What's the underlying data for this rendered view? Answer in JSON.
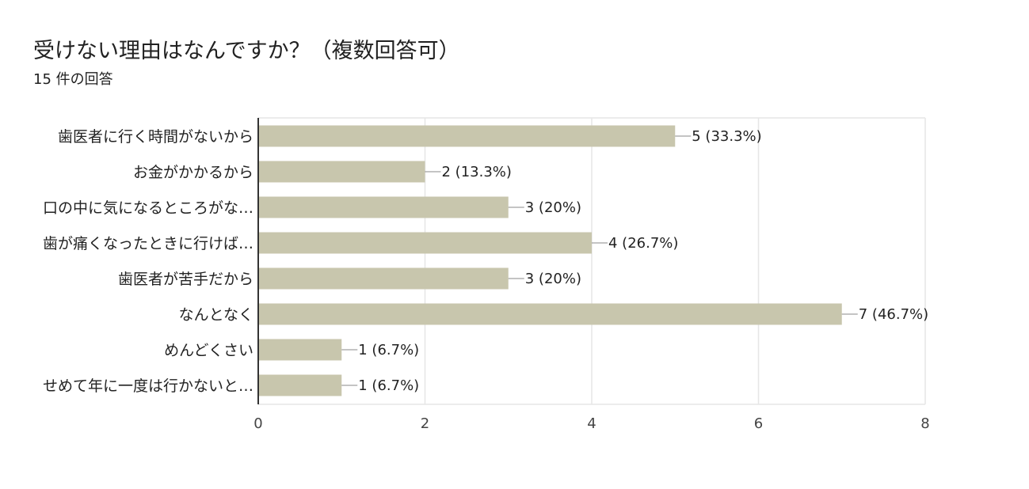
{
  "header": {
    "title": "受けない理由はなんですか？（複数回答可）",
    "response_count": "15 件の回答"
  },
  "colors": {
    "bar": "#c8c6ad",
    "grid": "#e6e6e6",
    "axis": "#333333",
    "text": "#222222",
    "tick": "#444444"
  },
  "chart_data": {
    "type": "bar",
    "orientation": "horizontal",
    "title": "受けない理由はなんですか？（複数回答可）",
    "categories": [
      "歯医者に行く時間がないから",
      "お金がかかるから",
      "口の中に気になるところがな…",
      "歯が痛くなったときに行けば…",
      "歯医者が苦手だから",
      "なんとなく",
      "めんどくさい",
      "せめて年に一度は行かないと…"
    ],
    "values": [
      5,
      2,
      3,
      4,
      3,
      7,
      1,
      1
    ],
    "data_labels": [
      "5 (33.3%)",
      "2 (13.3%)",
      "3 (20%)",
      "4 (26.7%)",
      "3 (20%)",
      "7 (46.7%)",
      "1 (6.7%)",
      "1 (6.7%)"
    ],
    "xlim": [
      0,
      8
    ],
    "xticks": [
      "0",
      "2",
      "4",
      "6",
      "8"
    ],
    "xlabel": "",
    "ylabel": "",
    "grid": true
  }
}
